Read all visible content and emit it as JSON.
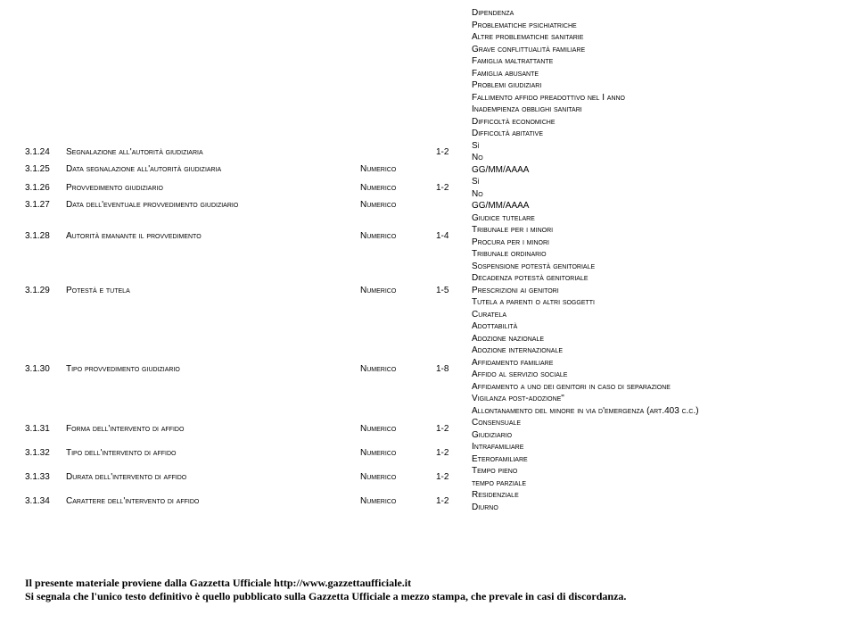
{
  "rows": [
    {
      "id": "",
      "label": "",
      "type": "",
      "range": "",
      "values": [
        "Dipendenza",
        "Problematiche psichiatriche",
        "Altre problematiche sanitarie",
        "Grave conflittualità familiare",
        "Famiglia maltrattante",
        "Famiglia abusante",
        "Problemi giudiziari",
        "Fallimento affido preadottivo nel I anno",
        "Inadempienza obblighi sanitari",
        "Difficoltà economiche",
        "Difficoltà abitative"
      ]
    },
    {
      "id": "3.1.24",
      "label": "Segnalazione all'autorità giudiziaria",
      "type": "",
      "range": "1-2",
      "values": [
        "Sì",
        "No"
      ]
    },
    {
      "id": "3.1.25",
      "label": "Data segnalazione all'autorità giudiziaria",
      "type": "Numerico",
      "range": "",
      "values": [
        "GG/MM/AAAA"
      ]
    },
    {
      "id": "3.1.26",
      "label": "Provvedimento giudiziario",
      "type": "Numerico",
      "range": "1-2",
      "values": [
        "Sì",
        "No"
      ]
    },
    {
      "id": "3.1.27",
      "label": "Data dell'eventuale provvedimento giudiziario",
      "type": "Numerico",
      "range": "",
      "values": [
        "GG/MM/AAAA"
      ]
    },
    {
      "id": "3.1.28",
      "label": "Autorità emanante il provvedimento",
      "type": "Numerico",
      "range": "1-4",
      "values": [
        "Giudice tutelare",
        "Tribunale per i minori",
        "Procura per i minori",
        "Tribunale ordinario"
      ]
    },
    {
      "id": "3.1.29",
      "label": "Potestà e tutela",
      "type": "Numerico",
      "range": "1-5",
      "values": [
        "Sospensione potestà genitoriale",
        "Decadenza potestà genitoriale",
        "Prescrizioni ai genitori",
        "Tutela a parenti o altri soggetti",
        "Curatela"
      ]
    },
    {
      "id": "3.1.30",
      "label": "Tipo provvedimento giudiziario",
      "type": "Numerico",
      "range": "1-8",
      "values": [
        "Adottabilità",
        "Adozione nazionale",
        "Adozione internazionale",
        "Affidamento familiare",
        "Affido al servizio sociale",
        "Affidamento a uno dei genitori in caso di separazione",
        "Vigilanza post-adozione\"",
        "Allontanamento del minore in via d'emergenza (art.403 c.c.)"
      ]
    },
    {
      "id": "3.1.31",
      "label": "Forma dell'intervento di affido",
      "type": "Numerico",
      "range": "1-2",
      "values": [
        "Consensuale",
        "Giudiziario"
      ]
    },
    {
      "id": "3.1.32",
      "label": "Tipo dell'intervento di affido",
      "type": "Numerico",
      "range": "1-2",
      "values": [
        "Intrafamiliare",
        "Eterofamiliare"
      ]
    },
    {
      "id": "3.1.33",
      "label": "Durata dell'intervento di affido",
      "type": "Numerico",
      "range": "1-2",
      "values": [
        "Tempo pieno",
        "tempo parziale"
      ]
    },
    {
      "id": "3.1.34",
      "label": "Carattere dell'intervento di affido",
      "type": "Numerico",
      "range": "1-2",
      "values": [
        "Residenziale",
        "Diurno"
      ]
    }
  ],
  "footer": {
    "line1": "Il presente materiale proviene dalla Gazzetta Ufficiale http://www.gazzettaufficiale.it",
    "line2": "Si segnala che l'unico testo definitivo è quello pubblicato sulla Gazzetta Ufficiale a mezzo stampa, che prevale in casi di discordanza."
  }
}
